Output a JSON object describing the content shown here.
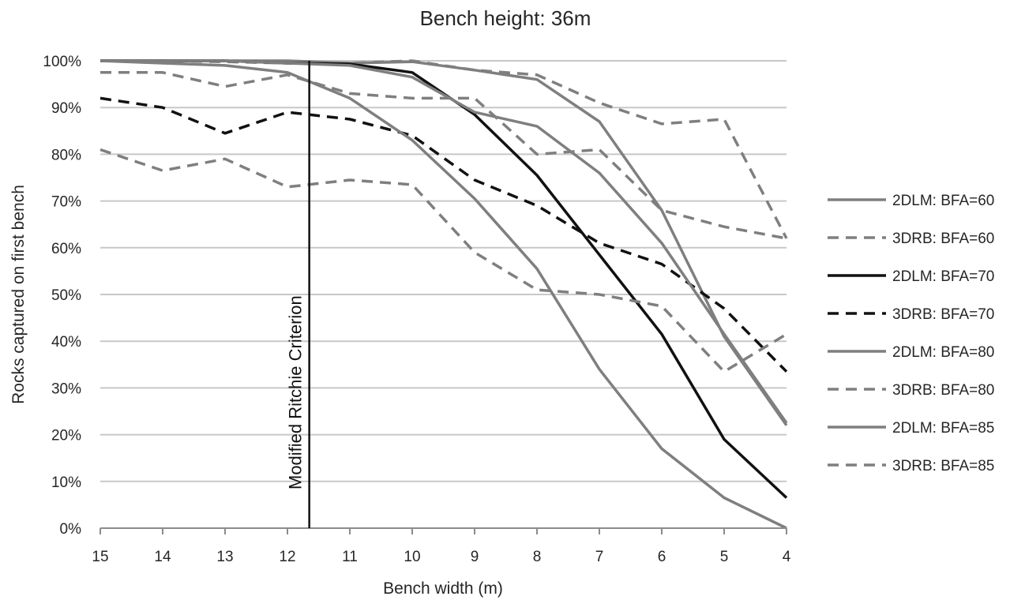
{
  "chart_data": {
    "type": "line",
    "title": "Bench height: 36m",
    "xlabel": "Bench width (m)",
    "ylabel": "Rocks captured on first bench",
    "x": [
      15,
      14,
      13,
      12,
      11,
      10,
      9,
      8,
      7,
      6,
      5,
      4
    ],
    "x_tick_labels": [
      "15",
      "14",
      "13",
      "12",
      "11",
      "10",
      "9",
      "8",
      "7",
      "6",
      "5",
      "4"
    ],
    "x_reversed": true,
    "ylim": [
      0,
      100
    ],
    "y_tick_labels": [
      "0%",
      "10%",
      "20%",
      "30%",
      "40%",
      "50%",
      "60%",
      "70%",
      "80%",
      "90%",
      "100%"
    ],
    "grid": "horizontal",
    "legend_position": "right",
    "annotation": {
      "text": "Modified Ritchie Criterion",
      "x": 11.65
    },
    "series": [
      {
        "name": "2DLM: BFA=60",
        "style": "solid",
        "color": "#7f7f7f",
        "values": [
          100,
          100,
          100,
          100,
          99.5,
          99.8,
          98,
          96,
          87,
          68,
          41,
          22
        ]
      },
      {
        "name": "3DRB: BFA=60",
        "style": "dashed",
        "color": "#7f7f7f",
        "values": [
          100,
          100,
          99.8,
          99.5,
          99.5,
          100,
          98,
          97,
          91,
          86.5,
          87.5,
          62
        ]
      },
      {
        "name": "2DLM: BFA=70",
        "style": "solid",
        "color": "#111111",
        "values": [
          100,
          100,
          100,
          99.5,
          99.3,
          97.5,
          88.5,
          75.5,
          58.5,
          41.5,
          19,
          6.5
        ]
      },
      {
        "name": "3DRB: BFA=70",
        "style": "dashed",
        "color": "#111111",
        "values": [
          92,
          90,
          84.5,
          89,
          87.5,
          84,
          74.5,
          69,
          61,
          56.5,
          47,
          33.5
        ]
      },
      {
        "name": "2DLM: BFA=80",
        "style": "solid",
        "color": "#7f7f7f",
        "values": [
          100,
          99.5,
          99,
          97.5,
          92,
          83,
          70.5,
          55.5,
          34,
          17,
          6.5,
          0
        ]
      },
      {
        "name": "3DRB: BFA=80",
        "style": "dashed",
        "color": "#7f7f7f",
        "values": [
          81,
          76.5,
          79,
          73,
          74.5,
          73.5,
          59,
          51,
          50,
          47.5,
          33.5,
          41.5
        ]
      },
      {
        "name": "2DLM: BFA=85",
        "style": "solid",
        "color": "#7f7f7f",
        "values": [
          100,
          100,
          100,
          99.5,
          99,
          96.5,
          89,
          86,
          76,
          61,
          41.5,
          22.5
        ]
      },
      {
        "name": "3DRB: BFA=85",
        "style": "dashed",
        "color": "#7f7f7f",
        "values": [
          97.5,
          97.5,
          94.5,
          97,
          93,
          92,
          92,
          80,
          81,
          68,
          64.5,
          62
        ]
      }
    ]
  }
}
